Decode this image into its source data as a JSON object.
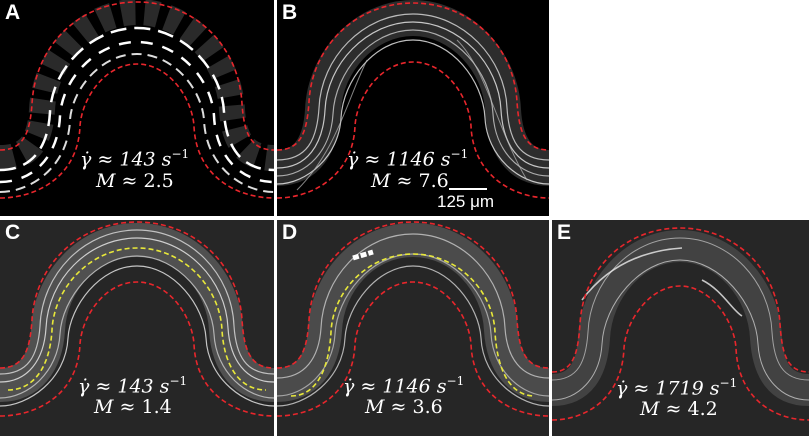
{
  "panels": [
    {
      "letter": "A",
      "shear": "γ̇ ≈ 143",
      "unit": "s",
      "exp": "−1",
      "mlabel": "M",
      "mval": "≈ 2.5"
    },
    {
      "letter": "B",
      "shear": "γ̇ ≈ 1146",
      "unit": "s",
      "exp": "−1",
      "mlabel": "M",
      "mval": "≈ 7.6",
      "scale": "125 μm"
    },
    {
      "letter": "C",
      "shear": "γ̇ ≈ 143",
      "unit": "s",
      "exp": "−1",
      "mlabel": "M",
      "mval": "≈ 1.4"
    },
    {
      "letter": "D",
      "shear": "γ̇ ≈ 1146",
      "unit": "s",
      "exp": "−1",
      "mlabel": "M",
      "mval": "≈ 3.6"
    },
    {
      "letter": "E",
      "shear": "γ̇ ≈ 1719",
      "unit": "s",
      "exp": "−1",
      "mlabel": "M",
      "mval": "≈ 4.2"
    }
  ],
  "colors": {
    "background_top": "#000000",
    "background_bottom": "#262626",
    "boundary": "#e8262c",
    "centerline": "#e8e83a",
    "text": "#ffffff"
  }
}
